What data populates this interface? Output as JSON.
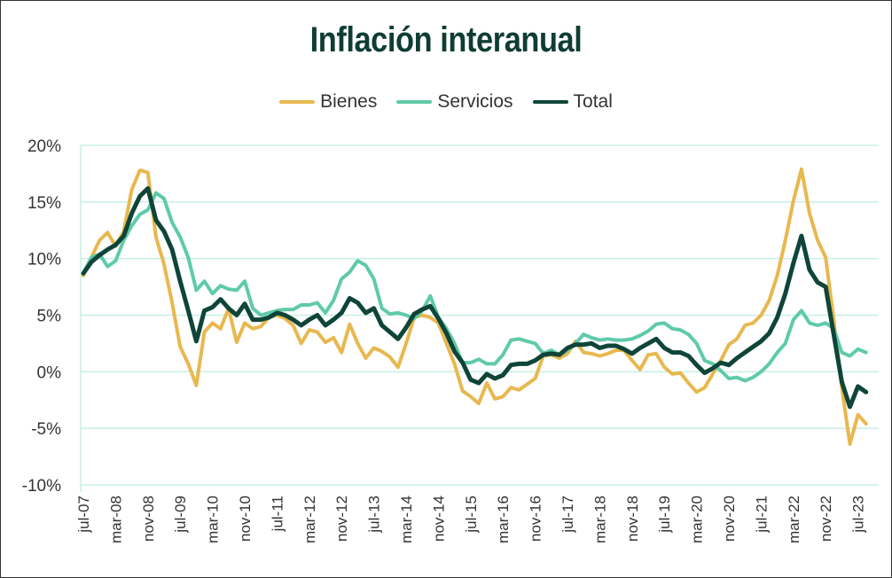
{
  "chart_data": {
    "type": "line",
    "title": "Inflación interanual",
    "xlabel": "",
    "ylabel": "",
    "x_start": "jul-07",
    "x_step_months": 2,
    "x_tick_labels": [
      "jul-07",
      "mar-08",
      "nov-08",
      "jul-09",
      "mar-10",
      "nov-10",
      "jul-11",
      "mar-12",
      "nov-12",
      "jul-13",
      "mar-14",
      "nov-14",
      "jul-15",
      "mar-16",
      "nov-16",
      "jul-17",
      "mar-18",
      "nov-18",
      "jul-19",
      "mar-20",
      "nov-20",
      "jul-21",
      "mar-22",
      "nov-22",
      "jul-23"
    ],
    "y_tick_labels": [
      "20%",
      "15%",
      "10%",
      "5%",
      "0%",
      "-5%",
      "-10%"
    ],
    "y_ticks": [
      20,
      15,
      10,
      5,
      0,
      -5,
      -10
    ],
    "ylim": [
      -10,
      20
    ],
    "grid": true,
    "legend_position": "top-center",
    "series": [
      {
        "name": "Bienes",
        "color": "#e8b84f",
        "values": [
          8.5,
          10.1,
          11.6,
          12.3,
          11.1,
          12.4,
          16.1,
          17.8,
          17.6,
          11.9,
          9.5,
          6.1,
          2.2,
          0.7,
          -1.2,
          3.5,
          4.3,
          3.8,
          5.6,
          2.6,
          4.3,
          3.8,
          4.0,
          4.8,
          5.0,
          4.7,
          4.1,
          2.5,
          3.7,
          3.5,
          2.6,
          3.0,
          1.7,
          4.2,
          2.5,
          1.2,
          2.1,
          1.8,
          1.3,
          0.4,
          2.5,
          4.8,
          5.0,
          4.8,
          4.3,
          2.5,
          0.7,
          -1.7,
          -2.2,
          -2.8,
          -1.0,
          -2.4,
          -2.2,
          -1.4,
          -1.6,
          -1.1,
          -0.6,
          1.4,
          1.5,
          1.2,
          1.6,
          2.7,
          1.7,
          1.6,
          1.4,
          1.6,
          1.9,
          1.9,
          1.0,
          0.2,
          1.5,
          1.6,
          0.4,
          -0.2,
          -0.1,
          -1.0,
          -1.8,
          -1.4,
          -0.2,
          1.0,
          2.4,
          2.9,
          4.1,
          4.3,
          5.0,
          6.3,
          8.5,
          11.6,
          15.1,
          17.9,
          14.0,
          11.6,
          10.1,
          4.6,
          -1.4,
          -6.4,
          -3.8,
          -4.6
        ]
      },
      {
        "name": "Servicios",
        "color": "#5fcaa9",
        "values": [
          8.7,
          10.1,
          10.4,
          9.3,
          9.8,
          11.6,
          12.9,
          13.9,
          14.3,
          15.8,
          15.3,
          13.2,
          11.9,
          10.1,
          7.2,
          8.0,
          6.9,
          7.6,
          7.3,
          7.2,
          8.0,
          5.6,
          5.0,
          5.2,
          5.4,
          5.5,
          5.5,
          5.9,
          5.9,
          6.1,
          5.2,
          6.3,
          8.2,
          8.8,
          9.8,
          9.4,
          8.2,
          5.6,
          5.1,
          5.2,
          5.0,
          4.7,
          5.4,
          6.7,
          4.8,
          3.8,
          2.5,
          0.8,
          0.8,
          1.1,
          0.7,
          0.7,
          1.5,
          2.8,
          2.9,
          2.7,
          2.5,
          1.6,
          1.9,
          1.5,
          1.9,
          2.5,
          3.3,
          3.0,
          2.8,
          2.9,
          2.8,
          2.8,
          2.9,
          3.2,
          3.6,
          4.2,
          4.3,
          3.8,
          3.7,
          3.3,
          2.5,
          1.0,
          0.7,
          0.1,
          -0.6,
          -0.5,
          -0.8,
          -0.5,
          0.0,
          0.7,
          1.7,
          2.5,
          4.6,
          5.4,
          4.3,
          4.1,
          4.3,
          3.8,
          1.7,
          1.4,
          2.0,
          1.7
        ]
      },
      {
        "name": "Total",
        "color": "#0f4539",
        "values": [
          8.7,
          9.7,
          10.3,
          10.8,
          11.2,
          12.0,
          14.0,
          15.5,
          16.2,
          13.4,
          12.4,
          10.8,
          8.0,
          5.4,
          2.7,
          5.4,
          5.7,
          6.4,
          5.6,
          5.0,
          6.0,
          4.6,
          4.6,
          4.8,
          5.2,
          5.0,
          4.6,
          4.1,
          4.6,
          5.0,
          4.1,
          4.6,
          5.2,
          6.5,
          6.1,
          5.2,
          5.6,
          4.1,
          3.5,
          2.9,
          3.9,
          5.1,
          5.5,
          5.8,
          4.7,
          3.4,
          1.8,
          0.8,
          -0.7,
          -1.0,
          -0.2,
          -0.6,
          -0.3,
          0.6,
          0.7,
          0.7,
          1.0,
          1.5,
          1.6,
          1.5,
          2.1,
          2.4,
          2.4,
          2.5,
          2.1,
          2.3,
          2.3,
          2.0,
          1.6,
          2.1,
          2.5,
          2.9,
          2.1,
          1.7,
          1.7,
          1.4,
          0.6,
          -0.1,
          0.3,
          0.8,
          0.6,
          1.2,
          1.7,
          2.2,
          2.7,
          3.4,
          4.8,
          6.9,
          9.6,
          12.0,
          9.0,
          7.9,
          7.5,
          3.3,
          -0.9,
          -3.1,
          -1.3,
          -1.8
        ]
      }
    ]
  }
}
